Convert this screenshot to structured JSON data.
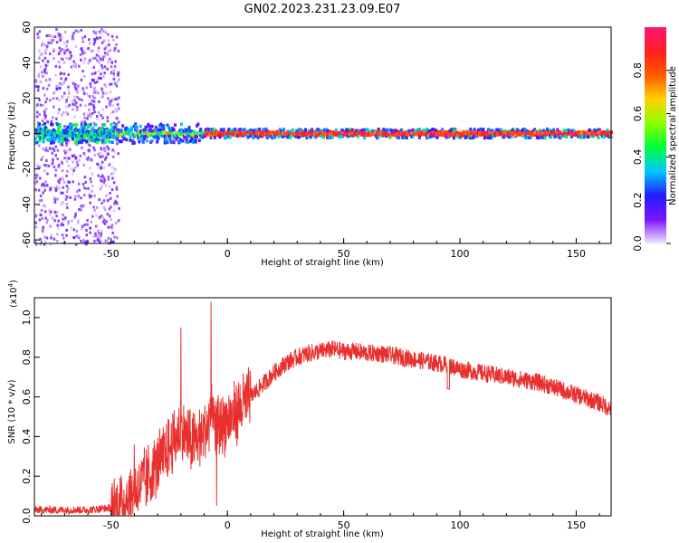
{
  "title": "GN02.2023.231.23.09.E07",
  "chart_data": [
    {
      "type": "heatmap",
      "xlabel": "Height of straight line (km)",
      "ylabel": "Frequency (Hz)",
      "xlim": [
        -83,
        165
      ],
      "ylim": [
        -62,
        60
      ],
      "x_ticks": [
        "-50",
        "0",
        "50",
        "100",
        "150"
      ],
      "y_ticks": [
        "-60",
        "-40",
        "-20",
        "0",
        "20",
        "40",
        "60"
      ],
      "colorbar": {
        "label": "Normalized spectral amplitude",
        "range": [
          0,
          1
        ],
        "ticks": [
          "0.0",
          "0.2",
          "0.4",
          "0.6",
          "0.8"
        ],
        "colormap": [
          "#f0e6ff",
          "#7a14ff",
          "#1f1fff",
          "#00c8ff",
          "#00ff3c",
          "#8cff00",
          "#ffd200",
          "#ff5a00",
          "#ff1e1e",
          "#ff1478"
        ]
      },
      "features": {
        "noise_region_x": [
          -83,
          -50
        ],
        "line_frequency_hz": 0,
        "line_start_x": -50
      }
    },
    {
      "type": "line",
      "xlabel": "Height of straight line (km)",
      "ylabel": "SNR (10 * v/v)",
      "y_multiplier": "(x10",
      "y_multiplier_exp": "4",
      "xlim": [
        -83,
        165
      ],
      "ylim": [
        0,
        1.1
      ],
      "x_ticks": [
        "-50",
        "0",
        "50",
        "100",
        "150"
      ],
      "y_ticks": [
        "0.0",
        "0.2",
        "0.4",
        "0.6",
        "0.8",
        "1.0"
      ],
      "color": "#e8302e",
      "series": [
        {
          "x": [
            -83,
            -70,
            -60,
            -50,
            -45,
            -40,
            -35,
            -30,
            -25,
            -20,
            -15,
            -10,
            -7,
            -5,
            0,
            5,
            10,
            15,
            20,
            25,
            30,
            35,
            40,
            45,
            50,
            55,
            60,
            65,
            70,
            75,
            80,
            85,
            90,
            95,
            100,
            105,
            110,
            115,
            120,
            125,
            130,
            135,
            140,
            145,
            150,
            155,
            160,
            165
          ],
          "values": [
            0.03,
            0.03,
            0.03,
            0.04,
            0.07,
            0.12,
            0.18,
            0.26,
            0.34,
            0.44,
            0.36,
            0.42,
            0.5,
            0.45,
            0.48,
            0.54,
            0.6,
            0.66,
            0.72,
            0.77,
            0.8,
            0.82,
            0.83,
            0.84,
            0.83,
            0.83,
            0.82,
            0.82,
            0.81,
            0.8,
            0.79,
            0.78,
            0.77,
            0.76,
            0.74,
            0.73,
            0.72,
            0.71,
            0.7,
            0.69,
            0.68,
            0.67,
            0.65,
            0.63,
            0.61,
            0.59,
            0.57,
            0.54
          ]
        }
      ],
      "peaks": [
        {
          "x": -40,
          "y": 0.36
        },
        {
          "x": -20,
          "y": 0.95
        },
        {
          "x": -7,
          "y": 1.08
        }
      ]
    }
  ]
}
